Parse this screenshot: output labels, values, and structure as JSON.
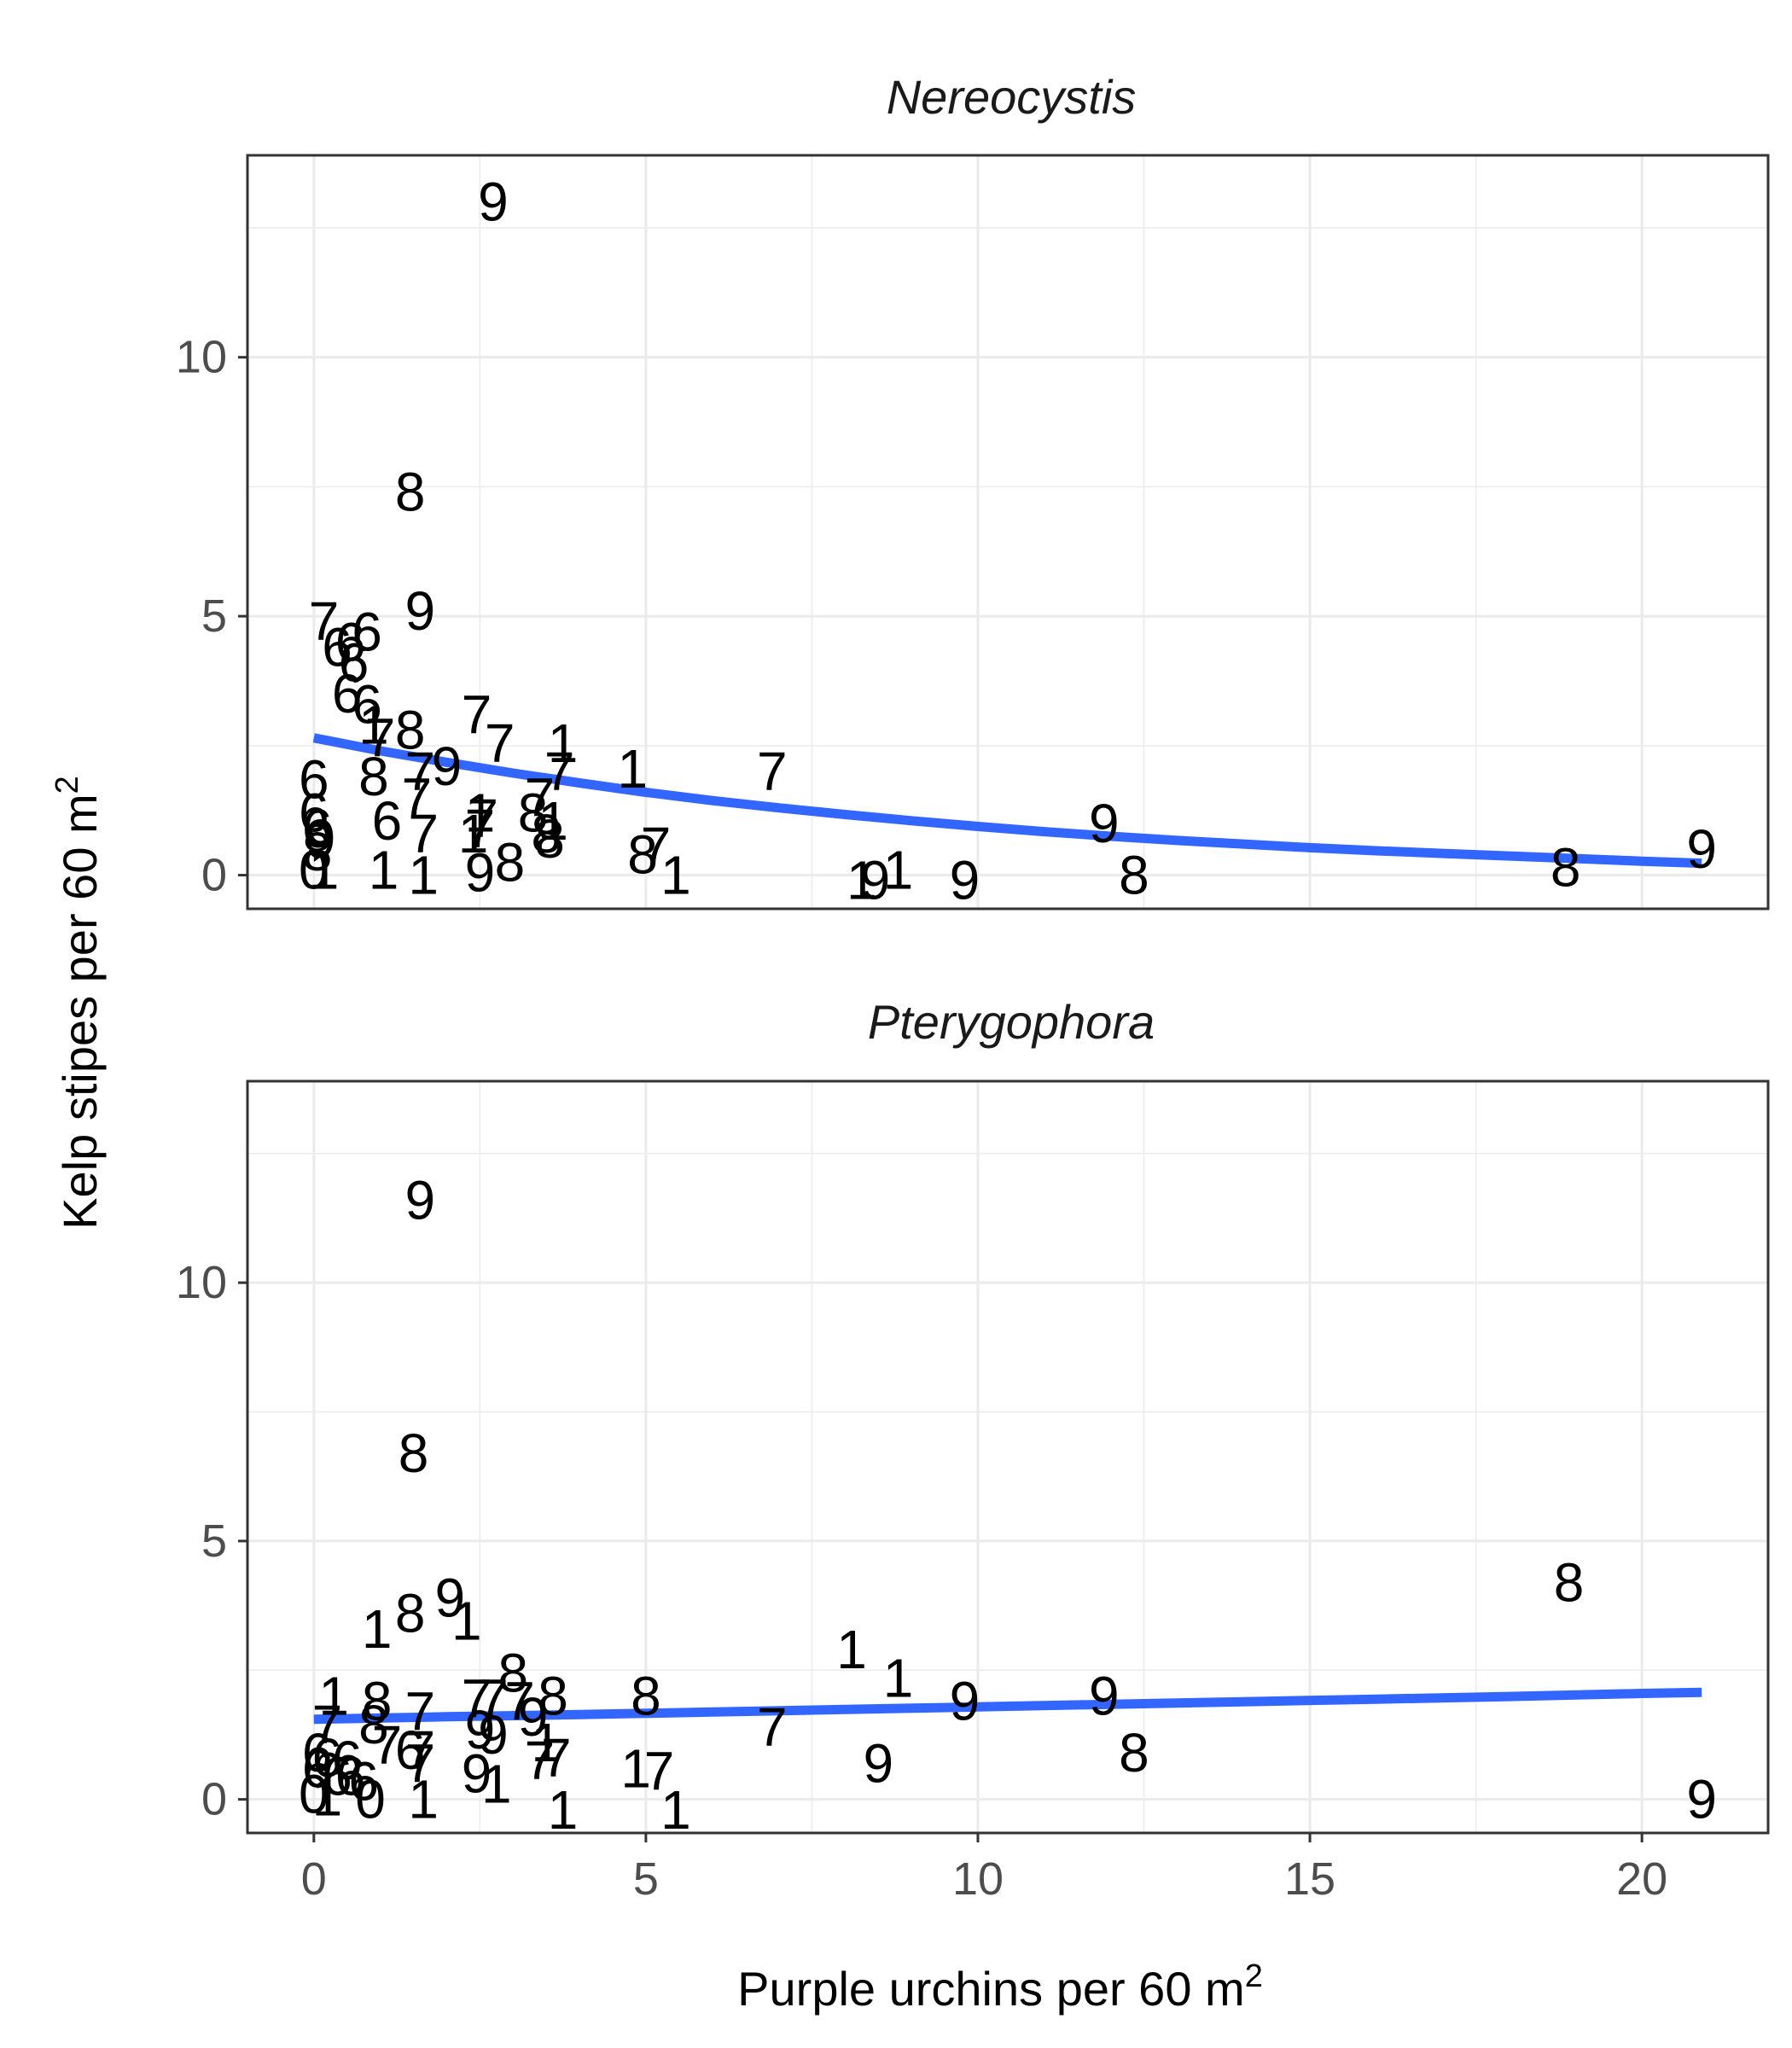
{
  "chart_data": {
    "type": "scatter",
    "xlabel": "Purple urchins per 60 m",
    "xlabel_sup": "2",
    "ylabel": "Kelp stipes per 60 m",
    "ylabel_sup": "2",
    "xlim": [
      -1,
      21.9
    ],
    "ylim": [
      -0.65,
      13.9
    ],
    "x_ticks": [
      0,
      5,
      10,
      15,
      20
    ],
    "x_tick_labels": [
      "0",
      "5",
      "10",
      "15",
      "20"
    ],
    "y_ticks": [
      0,
      5,
      10
    ],
    "y_tick_labels": [
      "0",
      "5",
      "10"
    ],
    "grid": true,
    "colors": {
      "trend_line": "#3366FF",
      "grid": "#EBEBEB",
      "panel_border": "#333333",
      "point_label": "#000000"
    },
    "panels": [
      {
        "title": "Nereocystis",
        "trend": {
          "x": [
            0,
            1,
            2,
            3,
            4,
            5,
            6,
            7,
            8,
            9,
            10,
            11,
            12,
            13,
            14,
            15,
            16,
            17,
            18,
            19,
            20,
            20.9
          ],
          "y": [
            2.65,
            2.4,
            2.18,
            1.97,
            1.78,
            1.6,
            1.44,
            1.3,
            1.17,
            1.05,
            0.94,
            0.84,
            0.75,
            0.67,
            0.6,
            0.53,
            0.47,
            0.42,
            0.37,
            0.32,
            0.27,
            0.23
          ]
        },
        "points": [
          {
            "x": 2.7,
            "y": 13.0,
            "label": "9"
          },
          {
            "x": 1.45,
            "y": 7.4,
            "label": "8"
          },
          {
            "x": 1.6,
            "y": 5.1,
            "label": "9"
          },
          {
            "x": 0.15,
            "y": 4.9,
            "label": "7"
          },
          {
            "x": 0.8,
            "y": 4.7,
            "label": "6"
          },
          {
            "x": 0.35,
            "y": 4.4,
            "label": "6"
          },
          {
            "x": 0.55,
            "y": 4.5,
            "label": "6"
          },
          {
            "x": 0.6,
            "y": 4.1,
            "label": "6"
          },
          {
            "x": 0.5,
            "y": 3.5,
            "label": "6"
          },
          {
            "x": 0.8,
            "y": 3.3,
            "label": "6"
          },
          {
            "x": 2.45,
            "y": 3.1,
            "label": "7"
          },
          {
            "x": 0.9,
            "y": 2.9,
            "label": "1"
          },
          {
            "x": 1.45,
            "y": 2.8,
            "label": "8"
          },
          {
            "x": 1.0,
            "y": 2.65,
            "label": "7"
          },
          {
            "x": 2.8,
            "y": 2.55,
            "label": "7"
          },
          {
            "x": 3.75,
            "y": 2.55,
            "label": "1"
          },
          {
            "x": 2.0,
            "y": 2.1,
            "label": "9"
          },
          {
            "x": 1.6,
            "y": 2.0,
            "label": "7"
          },
          {
            "x": 3.7,
            "y": 2.0,
            "label": "7"
          },
          {
            "x": 4.8,
            "y": 2.05,
            "label": "1"
          },
          {
            "x": 6.9,
            "y": 2.0,
            "label": "7"
          },
          {
            "x": 3.4,
            "y": 1.5,
            "label": "7"
          },
          {
            "x": 0.0,
            "y": 1.85,
            "label": "6"
          },
          {
            "x": 0.9,
            "y": 1.9,
            "label": "8"
          },
          {
            "x": 1.55,
            "y": 1.5,
            "label": "7"
          },
          {
            "x": 2.5,
            "y": 1.2,
            "label": "1"
          },
          {
            "x": 2.55,
            "y": 1.1,
            "label": "7"
          },
          {
            "x": 3.3,
            "y": 1.2,
            "label": "8"
          },
          {
            "x": 3.6,
            "y": 1.05,
            "label": "1"
          },
          {
            "x": 1.1,
            "y": 1.05,
            "label": "6"
          },
          {
            "x": 0.0,
            "y": 1.2,
            "label": "6"
          },
          {
            "x": 0.05,
            "y": 0.9,
            "label": "6"
          },
          {
            "x": 0.1,
            "y": 0.7,
            "label": "9"
          },
          {
            "x": 0.05,
            "y": 0.45,
            "label": "8"
          },
          {
            "x": 1.65,
            "y": 0.8,
            "label": "7"
          },
          {
            "x": 2.4,
            "y": 0.8,
            "label": "1"
          },
          {
            "x": 2.5,
            "y": 0.9,
            "label": "7"
          },
          {
            "x": 3.5,
            "y": 0.8,
            "label": "8"
          },
          {
            "x": 3.55,
            "y": 0.7,
            "label": "8"
          },
          {
            "x": 5.15,
            "y": 0.55,
            "label": "7"
          },
          {
            "x": 4.95,
            "y": 0.4,
            "label": "8"
          },
          {
            "x": 11.9,
            "y": 1.0,
            "label": "9"
          },
          {
            "x": 20.9,
            "y": 0.5,
            "label": "9"
          },
          {
            "x": 18.85,
            "y": 0.15,
            "label": "8"
          },
          {
            "x": 12.35,
            "y": 0.0,
            "label": "8"
          },
          {
            "x": 0.0,
            "y": 0.1,
            "label": "0"
          },
          {
            "x": 0.15,
            "y": 0.1,
            "label": "1"
          },
          {
            "x": 1.05,
            "y": 0.1,
            "label": "1"
          },
          {
            "x": 1.65,
            "y": 0.0,
            "label": "1"
          },
          {
            "x": 2.5,
            "y": 0.05,
            "label": "9"
          },
          {
            "x": 2.95,
            "y": 0.25,
            "label": "8"
          },
          {
            "x": 5.45,
            "y": 0.0,
            "label": "1"
          },
          {
            "x": 8.25,
            "y": -0.1,
            "label": "1"
          },
          {
            "x": 8.45,
            "y": -0.1,
            "label": "9"
          },
          {
            "x": 8.8,
            "y": 0.1,
            "label": "1"
          },
          {
            "x": 9.8,
            "y": -0.1,
            "label": "9"
          }
        ]
      },
      {
        "title": "Pterygophora",
        "trend": {
          "x": [
            0,
            2,
            4,
            6,
            8,
            10,
            12,
            14,
            16,
            18,
            20,
            20.9
          ],
          "y": [
            1.55,
            1.6,
            1.64,
            1.69,
            1.74,
            1.79,
            1.84,
            1.89,
            1.94,
            1.99,
            2.05,
            2.07
          ]
        },
        "points": [
          {
            "x": 1.6,
            "y": 11.6,
            "label": "9"
          },
          {
            "x": 1.5,
            "y": 6.7,
            "label": "8"
          },
          {
            "x": 18.9,
            "y": 4.2,
            "label": "8"
          },
          {
            "x": 2.05,
            "y": 3.9,
            "label": "9"
          },
          {
            "x": 1.45,
            "y": 3.6,
            "label": "8"
          },
          {
            "x": 2.3,
            "y": 3.45,
            "label": "1"
          },
          {
            "x": 0.95,
            "y": 3.3,
            "label": "1"
          },
          {
            "x": 8.1,
            "y": 2.9,
            "label": "1"
          },
          {
            "x": 8.8,
            "y": 2.35,
            "label": "1"
          },
          {
            "x": 3.0,
            "y": 2.45,
            "label": "8"
          },
          {
            "x": 3.6,
            "y": 2.0,
            "label": "8"
          },
          {
            "x": 2.45,
            "y": 1.95,
            "label": "7"
          },
          {
            "x": 2.7,
            "y": 1.95,
            "label": "7"
          },
          {
            "x": 3.1,
            "y": 1.9,
            "label": "7"
          },
          {
            "x": 5.0,
            "y": 2.0,
            "label": "8"
          },
          {
            "x": 9.8,
            "y": 1.9,
            "label": "9"
          },
          {
            "x": 11.9,
            "y": 2.0,
            "label": "9"
          },
          {
            "x": 0.3,
            "y": 2.0,
            "label": "1"
          },
          {
            "x": 0.95,
            "y": 1.9,
            "label": "8"
          },
          {
            "x": 1.6,
            "y": 1.7,
            "label": "7"
          },
          {
            "x": 0.2,
            "y": 1.45,
            "label": "7"
          },
          {
            "x": 0.9,
            "y": 1.45,
            "label": "8"
          },
          {
            "x": 3.3,
            "y": 1.6,
            "label": "9"
          },
          {
            "x": 6.9,
            "y": 1.4,
            "label": "7"
          },
          {
            "x": 2.5,
            "y": 1.35,
            "label": "9"
          },
          {
            "x": 2.7,
            "y": 1.25,
            "label": "9"
          },
          {
            "x": 1.1,
            "y": 1.05,
            "label": "7"
          },
          {
            "x": 1.45,
            "y": 0.95,
            "label": "6"
          },
          {
            "x": 1.6,
            "y": 0.95,
            "label": "7"
          },
          {
            "x": 3.5,
            "y": 1.1,
            "label": "1"
          },
          {
            "x": 0.05,
            "y": 0.9,
            "label": "6"
          },
          {
            "x": 0.2,
            "y": 0.8,
            "label": "6"
          },
          {
            "x": 0.5,
            "y": 0.75,
            "label": "6"
          },
          {
            "x": 0.05,
            "y": 0.6,
            "label": "6"
          },
          {
            "x": 0.35,
            "y": 0.45,
            "label": "6"
          },
          {
            "x": 0.55,
            "y": 0.45,
            "label": "6"
          },
          {
            "x": 0.75,
            "y": 0.35,
            "label": "6"
          },
          {
            "x": 1.6,
            "y": 0.7,
            "label": "7"
          },
          {
            "x": 3.4,
            "y": 0.75,
            "label": "7"
          },
          {
            "x": 3.65,
            "y": 0.8,
            "label": "7"
          },
          {
            "x": 12.35,
            "y": 0.9,
            "label": "8"
          },
          {
            "x": 8.5,
            "y": 0.7,
            "label": "9"
          },
          {
            "x": 5.2,
            "y": 0.55,
            "label": "7"
          },
          {
            "x": 4.85,
            "y": 0.6,
            "label": "1"
          },
          {
            "x": 2.45,
            "y": 0.5,
            "label": "9"
          },
          {
            "x": 2.75,
            "y": 0.3,
            "label": "1"
          },
          {
            "x": 0.0,
            "y": 0.1,
            "label": "0"
          },
          {
            "x": 0.2,
            "y": 0.05,
            "label": "1"
          },
          {
            "x": 0.85,
            "y": 0.0,
            "label": "0"
          },
          {
            "x": 1.65,
            "y": 0.0,
            "label": "1"
          },
          {
            "x": 3.75,
            "y": -0.2,
            "label": "1"
          },
          {
            "x": 5.45,
            "y": -0.2,
            "label": "1"
          },
          {
            "x": 20.9,
            "y": 0.0,
            "label": "9"
          }
        ]
      }
    ]
  }
}
